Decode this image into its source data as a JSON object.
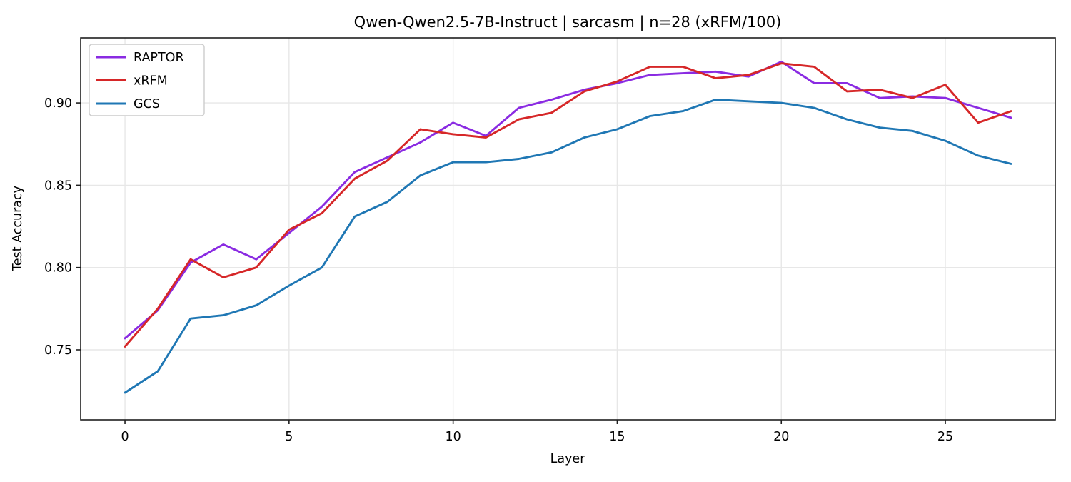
{
  "chart_data": {
    "type": "line",
    "title": "Qwen-Qwen2.5-7B-Instruct | sarcasm | n=28 (xRFM/100)",
    "xlabel": "Layer",
    "ylabel": "Test Accuracy",
    "x": [
      0,
      1,
      2,
      3,
      4,
      5,
      6,
      7,
      8,
      9,
      10,
      11,
      12,
      13,
      14,
      15,
      16,
      17,
      18,
      19,
      20,
      21,
      22,
      23,
      24,
      25,
      26,
      27
    ],
    "series": [
      {
        "name": "RAPTOR",
        "color": "#8A2BE2",
        "values": [
          0.757,
          0.774,
          0.803,
          0.814,
          0.805,
          0.821,
          0.837,
          0.858,
          0.867,
          0.876,
          0.888,
          0.88,
          0.897,
          0.902,
          0.908,
          0.912,
          0.917,
          0.918,
          0.919,
          0.916,
          0.925,
          0.912,
          0.912,
          0.903,
          0.904,
          0.903,
          0.897,
          0.891
        ]
      },
      {
        "name": "xRFM",
        "color": "#D62728",
        "values": [
          0.752,
          0.775,
          0.805,
          0.794,
          0.8,
          0.823,
          0.833,
          0.854,
          0.865,
          0.884,
          0.881,
          0.879,
          0.89,
          0.894,
          0.907,
          0.913,
          0.922,
          0.922,
          0.915,
          0.917,
          0.924,
          0.922,
          0.907,
          0.908,
          0.903,
          0.911,
          0.888,
          0.895
        ]
      },
      {
        "name": "GCS",
        "color": "#1F77B4",
        "values": [
          0.724,
          0.737,
          0.769,
          0.771,
          0.777,
          0.789,
          0.8,
          0.831,
          0.84,
          0.856,
          0.864,
          0.864,
          0.866,
          0.87,
          0.879,
          0.884,
          0.892,
          0.895,
          0.902,
          0.901,
          0.9,
          0.897,
          0.89,
          0.885,
          0.883,
          0.877,
          0.868,
          0.863
        ]
      }
    ],
    "xlim": [
      -1.35,
      28.35
    ],
    "ylim": [
      0.7075,
      0.9395
    ],
    "xticks": [
      0,
      5,
      10,
      15,
      20,
      25
    ],
    "xtick_labels": [
      "0",
      "5",
      "10",
      "15",
      "20",
      "25"
    ],
    "yticks": [
      0.75,
      0.8,
      0.85,
      0.9
    ],
    "ytick_labels": [
      "0.75",
      "0.80",
      "0.85",
      "0.90"
    ],
    "grid": true,
    "legend_position": "upper left",
    "colors": {
      "background": "#ffffff",
      "grid": "#e7e7e7",
      "spine": "#1f1f1f",
      "text": "#000000",
      "legend_border": "#cccccc"
    }
  }
}
